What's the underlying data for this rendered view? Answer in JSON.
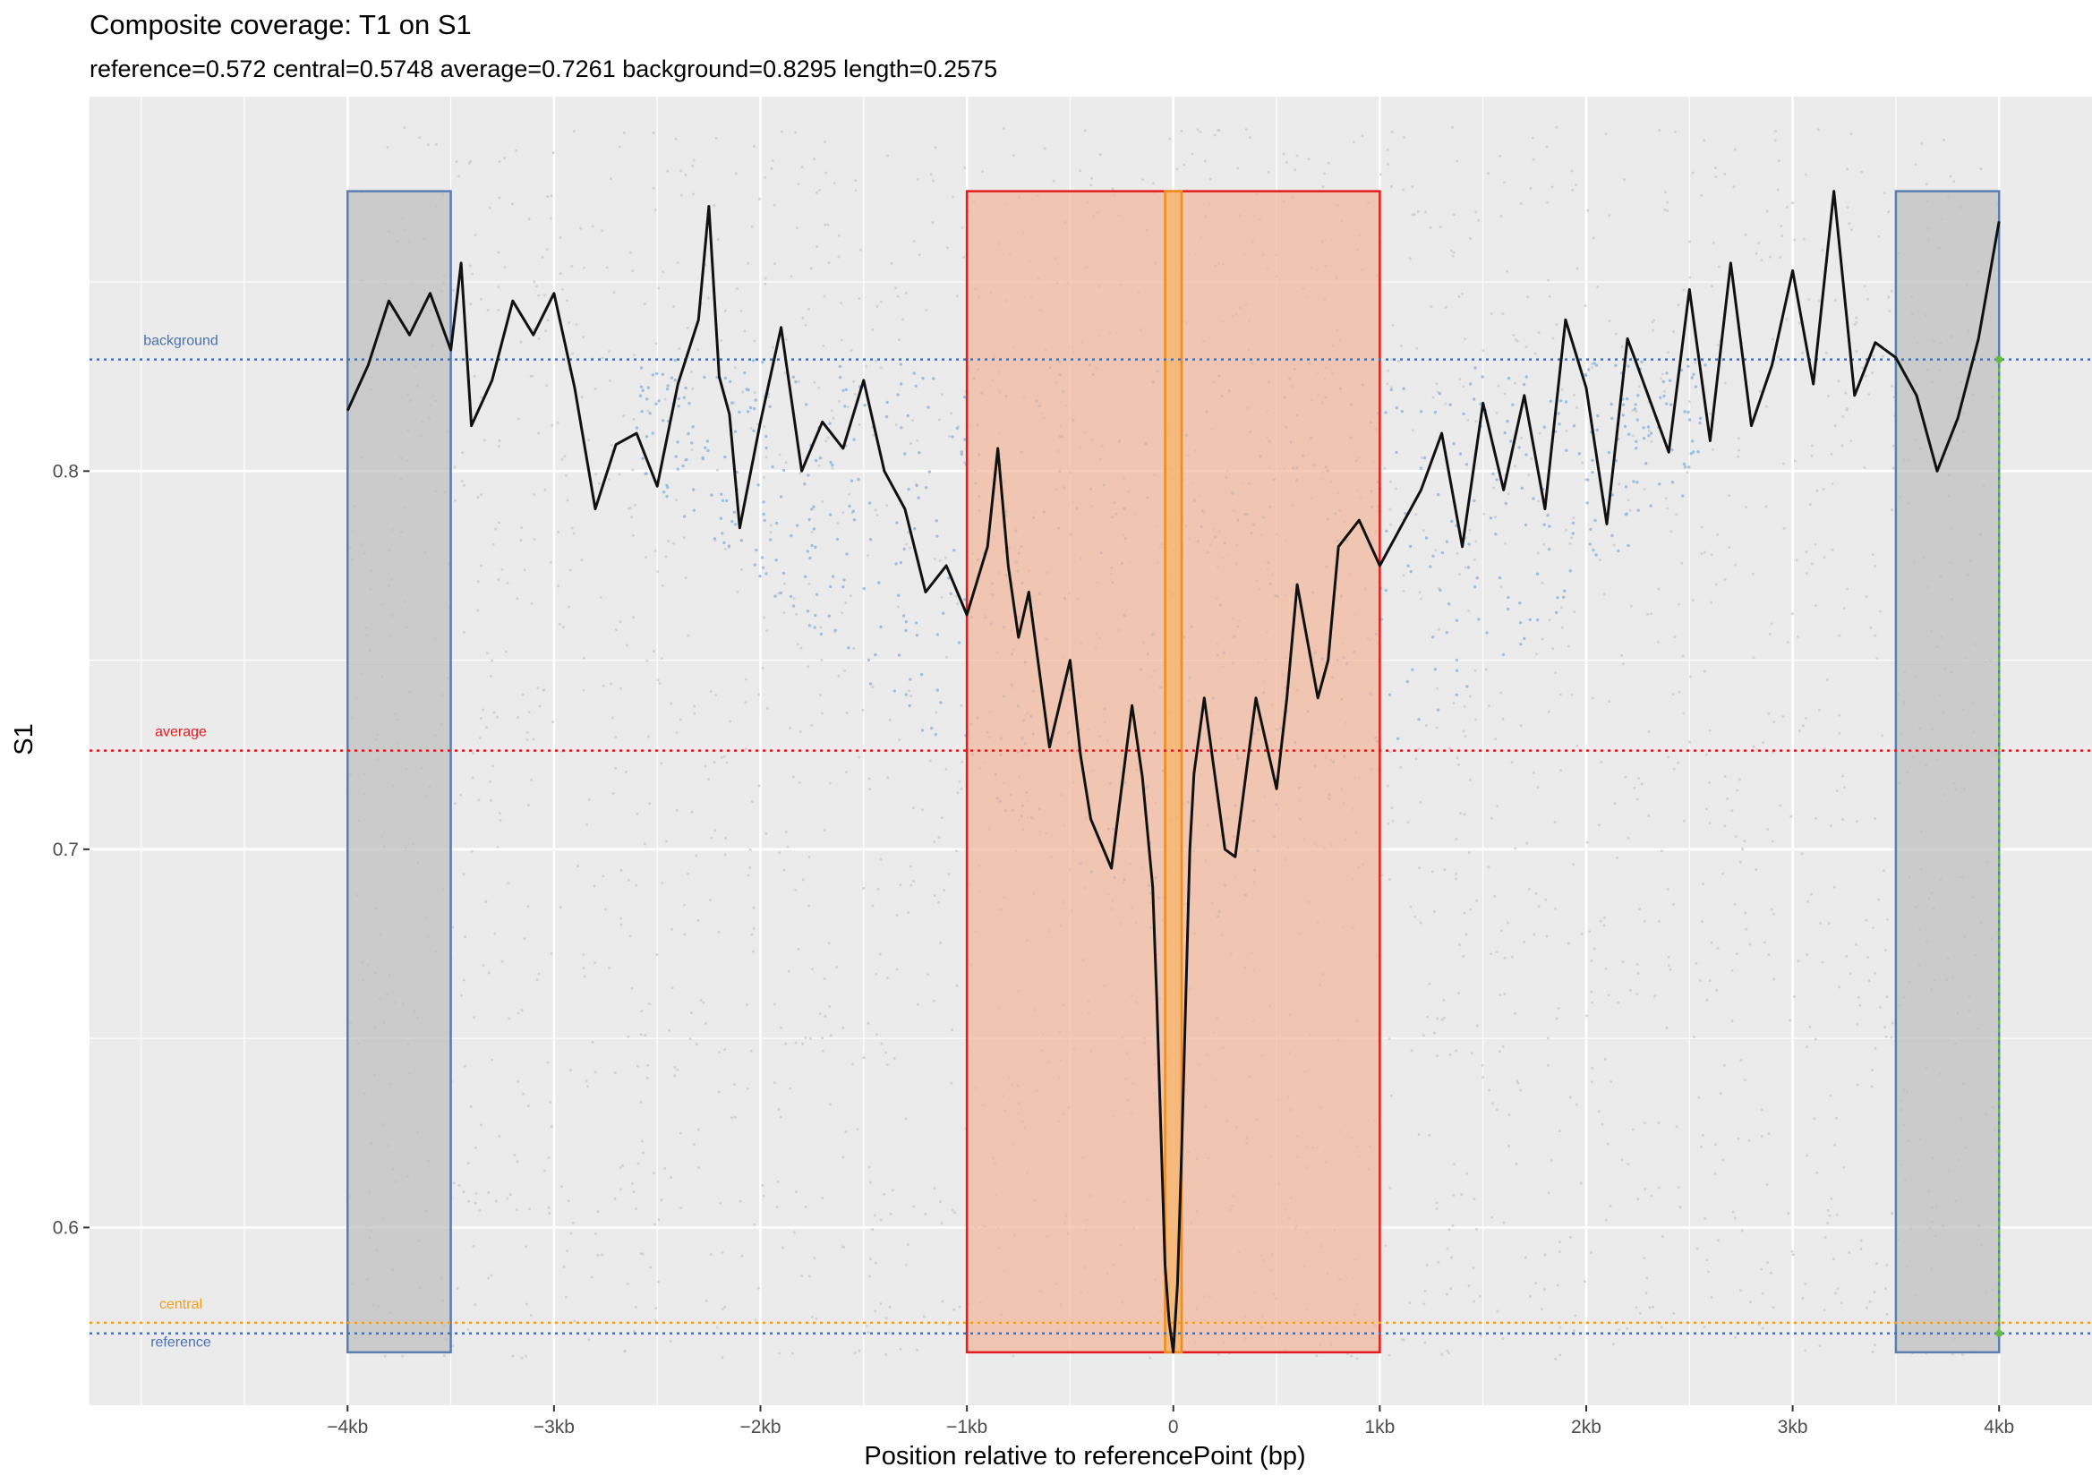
{
  "chart_data": {
    "type": "line",
    "title": "Composite coverage:  T1 on S1",
    "subtitle": "reference=0.572 central=0.5748 average=0.7261 background=0.8295 length=0.2575",
    "xlabel": "Position relative to referencePoint (bp)",
    "ylabel": "S1",
    "xlim": [
      -5250,
      4450
    ],
    "ylim": [
      0.553,
      0.899
    ],
    "x_ticks": [
      {
        "value": -4000,
        "label": "−4kb"
      },
      {
        "value": -3000,
        "label": "−3kb"
      },
      {
        "value": -2000,
        "label": "−2kb"
      },
      {
        "value": -1000,
        "label": "−1kb"
      },
      {
        "value": 0,
        "label": "0"
      },
      {
        "value": 1000,
        "label": "1kb"
      },
      {
        "value": 2000,
        "label": "2kb"
      },
      {
        "value": 3000,
        "label": "3kb"
      },
      {
        "value": 4000,
        "label": "4kb"
      }
    ],
    "y_ticks": [
      {
        "value": 0.6,
        "label": "0.6"
      },
      {
        "value": 0.7,
        "label": "0.7"
      },
      {
        "value": 0.8,
        "label": "0.8"
      }
    ],
    "grid": true,
    "reference_lines": [
      {
        "name": "background",
        "value": 0.8295,
        "color": "#4a72b0"
      },
      {
        "name": "average",
        "value": 0.7261,
        "color": "#e41a1c"
      },
      {
        "name": "central",
        "value": 0.5748,
        "color": "#f0a020"
      },
      {
        "name": "reference",
        "value": 0.572,
        "color": "#4a72b0"
      }
    ],
    "regions": [
      {
        "name": "background-left",
        "x": [
          -4000,
          -3500
        ],
        "y": [
          0.567,
          0.874
        ],
        "fill": "#bdbdbd",
        "stroke": "#5b7db1"
      },
      {
        "name": "background-right",
        "x": [
          3500,
          4000
        ],
        "y": [
          0.567,
          0.874
        ],
        "fill": "#bdbdbd",
        "stroke": "#5b7db1"
      },
      {
        "name": "central-window",
        "x": [
          -1000,
          1000
        ],
        "y": [
          0.567,
          0.874
        ],
        "fill": "#f2b79a",
        "stroke": "#e41a1c"
      },
      {
        "name": "center-point",
        "x": [
          -40,
          40
        ],
        "y": [
          0.567,
          0.874
        ],
        "fill": "#f8b465",
        "stroke": "#f08c1e"
      }
    ],
    "reference_marker": {
      "x": 4000,
      "y_from": 0.572,
      "y_to": 0.8295,
      "color": "#66bb44"
    },
    "series": [
      {
        "color": "#111111",
        "x": [
          -4000,
          -3900,
          -3800,
          -3700,
          -3600,
          -3500,
          -3450,
          -3400,
          -3300,
          -3200,
          -3100,
          -3000,
          -2900,
          -2800,
          -2700,
          -2600,
          -2500,
          -2400,
          -2300,
          -2250,
          -2200,
          -2150,
          -2100,
          -2000,
          -1900,
          -1800,
          -1700,
          -1600,
          -1500,
          -1400,
          -1300,
          -1200,
          -1100,
          -1000,
          -900,
          -850,
          -800,
          -750,
          -700,
          -600,
          -500,
          -450,
          -400,
          -300,
          -200,
          -150,
          -100,
          -80,
          -60,
          -40,
          -20,
          0,
          20,
          40,
          60,
          80,
          100,
          150,
          200,
          250,
          300,
          400,
          500,
          550,
          600,
          700,
          750,
          800,
          900,
          1000,
          1100,
          1200,
          1300,
          1400,
          1500,
          1600,
          1700,
          1800,
          1900,
          2000,
          2100,
          2200,
          2300,
          2400,
          2500,
          2600,
          2700,
          2800,
          2900,
          3000,
          3100,
          3200,
          3300,
          3400,
          3500,
          3600,
          3700,
          3800,
          3900,
          4000
        ],
        "values": [
          0.816,
          0.828,
          0.845,
          0.836,
          0.847,
          0.832,
          0.855,
          0.812,
          0.824,
          0.845,
          0.836,
          0.847,
          0.822,
          0.79,
          0.807,
          0.81,
          0.796,
          0.823,
          0.84,
          0.87,
          0.825,
          0.815,
          0.785,
          0.813,
          0.838,
          0.8,
          0.813,
          0.806,
          0.824,
          0.8,
          0.79,
          0.768,
          0.775,
          0.762,
          0.78,
          0.806,
          0.775,
          0.756,
          0.768,
          0.727,
          0.75,
          0.725,
          0.708,
          0.695,
          0.738,
          0.719,
          0.69,
          0.66,
          0.625,
          0.59,
          0.575,
          0.567,
          0.585,
          0.62,
          0.66,
          0.7,
          0.72,
          0.74,
          0.72,
          0.7,
          0.698,
          0.74,
          0.716,
          0.74,
          0.77,
          0.74,
          0.75,
          0.78,
          0.787,
          0.775,
          0.785,
          0.795,
          0.81,
          0.78,
          0.818,
          0.795,
          0.82,
          0.79,
          0.84,
          0.822,
          0.786,
          0.835,
          0.82,
          0.805,
          0.848,
          0.808,
          0.855,
          0.812,
          0.828,
          0.853,
          0.823,
          0.874,
          0.82,
          0.834,
          0.83,
          0.82,
          0.8,
          0.814,
          0.835,
          0.866
        ]
      }
    ]
  }
}
